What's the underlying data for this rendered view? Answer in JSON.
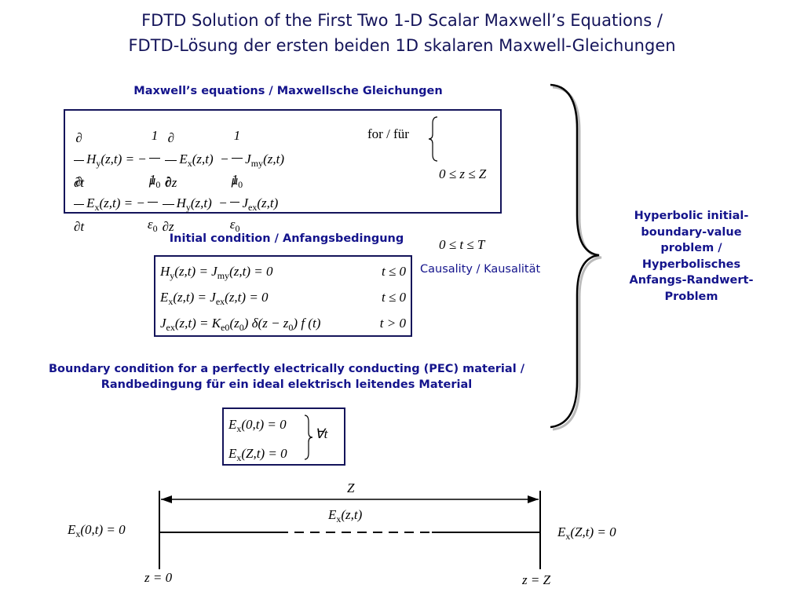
{
  "header": {
    "title": [
      "FDTD Solution of the First Two 1-D Scalar Maxwell’s Equations /",
      "FDTD-Lösung der ersten beiden 1D skalaren Maxwell-Gleichungen"
    ]
  },
  "maxwell": {
    "heading": "Maxwell’s equations / Maxwellsche Gleichungen",
    "equations": [
      [
        {
          "num": "∂",
          "den": "∂t"
        },
        {
          "base": "H",
          "sub": "y"
        },
        "(z,t) = −",
        {
          "num": "1",
          "den": [
            {
              "base": "μ",
              "sub": "0"
            }
          ]
        },
        {
          "num": "∂",
          "den": "∂z"
        },
        {
          "base": "E",
          "sub": "x"
        },
        "(z,t)  −",
        {
          "num": "1",
          "den": [
            {
              "base": "μ",
              "sub": "0"
            }
          ]
        },
        {
          "base": "J",
          "sub": "my"
        },
        "(z,t)"
      ],
      [
        {
          "num": "∂",
          "den": "∂t"
        },
        {
          "base": "E",
          "sub": "x"
        },
        "(z,t) = −",
        {
          "num": "1",
          "den": [
            {
              "base": "ε",
              "sub": "0"
            }
          ]
        },
        {
          "num": "∂",
          "den": "∂z"
        },
        {
          "base": "H",
          "sub": "y"
        },
        "(z,t)  −",
        {
          "num": "1",
          "den": [
            {
              "base": "ε",
              "sub": "0"
            }
          ]
        },
        {
          "base": "J",
          "sub": "ex"
        },
        "(z,t)"
      ]
    ],
    "condition_label": "for / für",
    "conditions": [
      "0 ≤ z ≤ Z",
      "0 ≤ t ≤ T"
    ]
  },
  "initial": {
    "heading": "Initial condition / Anfangsbedingung",
    "equations": [
      {
        "lhs": [
          {
            "base": "H",
            "sub": "y"
          },
          "(z,t) = ",
          {
            "base": "J",
            "sub": "my"
          },
          "(z,t) = 0"
        ],
        "cond": "t ≤ 0"
      },
      {
        "lhs": [
          {
            "base": "E",
            "sub": "x"
          },
          "(z,t) = ",
          {
            "base": "J",
            "sub": "ex"
          },
          "(z,t) = 0"
        ],
        "cond": "t ≤ 0"
      },
      {
        "lhs": [
          {
            "base": "J",
            "sub": "ex"
          },
          "(z,t) = ",
          {
            "base": "K",
            "sub": "e0"
          },
          "(",
          {
            "base": "z",
            "sub": "0"
          },
          ") δ(z − ",
          {
            "base": "z",
            "sub": "0"
          },
          ") f (t)"
        ],
        "cond": "t > 0"
      }
    ]
  },
  "causality": "Causality / Kausalität",
  "boundary": {
    "heading": [
      "Boundary condition for a perfectly electrically conducting (PEC) material /",
      "Randbedingung für ein ideal elektrisch leitendes Material"
    ],
    "equations": [
      [
        {
          "base": "E",
          "sub": "x"
        },
        "(0,t) = 0"
      ],
      [
        {
          "base": "E",
          "sub": "x"
        },
        "(Z,t) = 0"
      ]
    ],
    "condition": "∀t"
  },
  "summary": "Hyperbolic initial-boundary-value problem / Hyperbolisches Anfangs-Randwert-Problem",
  "diagram": {
    "length": "Z",
    "field": [
      {
        "base": "E",
        "sub": "x"
      },
      "(z,t)"
    ],
    "left_bc": [
      {
        "base": "E",
        "sub": "x"
      },
      "(0,t) = 0"
    ],
    "right_bc": [
      {
        "base": "E",
        "sub": "x"
      },
      "(Z,t) = 0"
    ],
    "left_pos": "z = 0",
    "right_pos": "z = Z"
  }
}
